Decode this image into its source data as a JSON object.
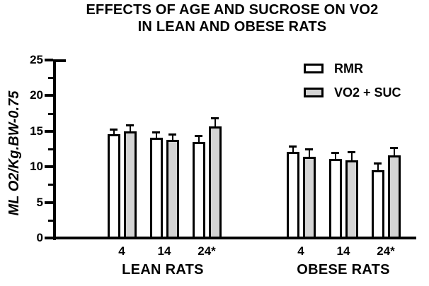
{
  "title": {
    "line1": "EFFECTS OF AGE AND SUCROSE ON VO2",
    "line2": "IN LEAN AND OBESE RATS"
  },
  "chart_data": {
    "type": "bar",
    "title": "EFFECTS OF AGE AND SUCROSE ON VO2 IN LEAN AND OBESE RATS",
    "xlabel": "",
    "ylabel": "ML O2/Kg.BW-0.75",
    "ylim": [
      0,
      25
    ],
    "y_major_ticks": [
      0,
      5,
      10,
      15,
      20,
      25
    ],
    "y_minor_ticks": [
      2.5,
      7.5,
      12.5,
      17.5,
      22.5
    ],
    "grid": "off",
    "legend_position": "upper right inside",
    "legend": [
      {
        "label": "RMR",
        "fill": "#ffffff"
      },
      {
        "label": "VO2 + SUC",
        "fill": "#d4d4d4"
      }
    ],
    "bar_border_color": "#000000",
    "groups": [
      {
        "label": "LEAN RATS",
        "categories": [
          "4",
          "14",
          "24*"
        ],
        "series": [
          {
            "name": "RMR",
            "fill": "#ffffff",
            "values": [
              14.6,
              14.1,
              13.5
            ],
            "errors": [
              0.6,
              0.7,
              0.75
            ]
          },
          {
            "name": "VO2 + SUC",
            "fill": "#d4d4d4",
            "values": [
              15.0,
              13.8,
              15.7
            ],
            "errors": [
              0.75,
              0.7,
              1.1
            ]
          }
        ]
      },
      {
        "label": "OBESE RATS",
        "categories": [
          "4",
          "14",
          "24*"
        ],
        "series": [
          {
            "name": "RMR",
            "fill": "#ffffff",
            "values": [
              12.1,
              11.1,
              9.5
            ],
            "errors": [
              0.7,
              0.8,
              0.9
            ]
          },
          {
            "name": "VO2 + SUC",
            "fill": "#d4d4d4",
            "values": [
              11.4,
              10.9,
              11.6
            ],
            "errors": [
              1.0,
              1.1,
              1.0
            ]
          }
        ]
      }
    ]
  }
}
